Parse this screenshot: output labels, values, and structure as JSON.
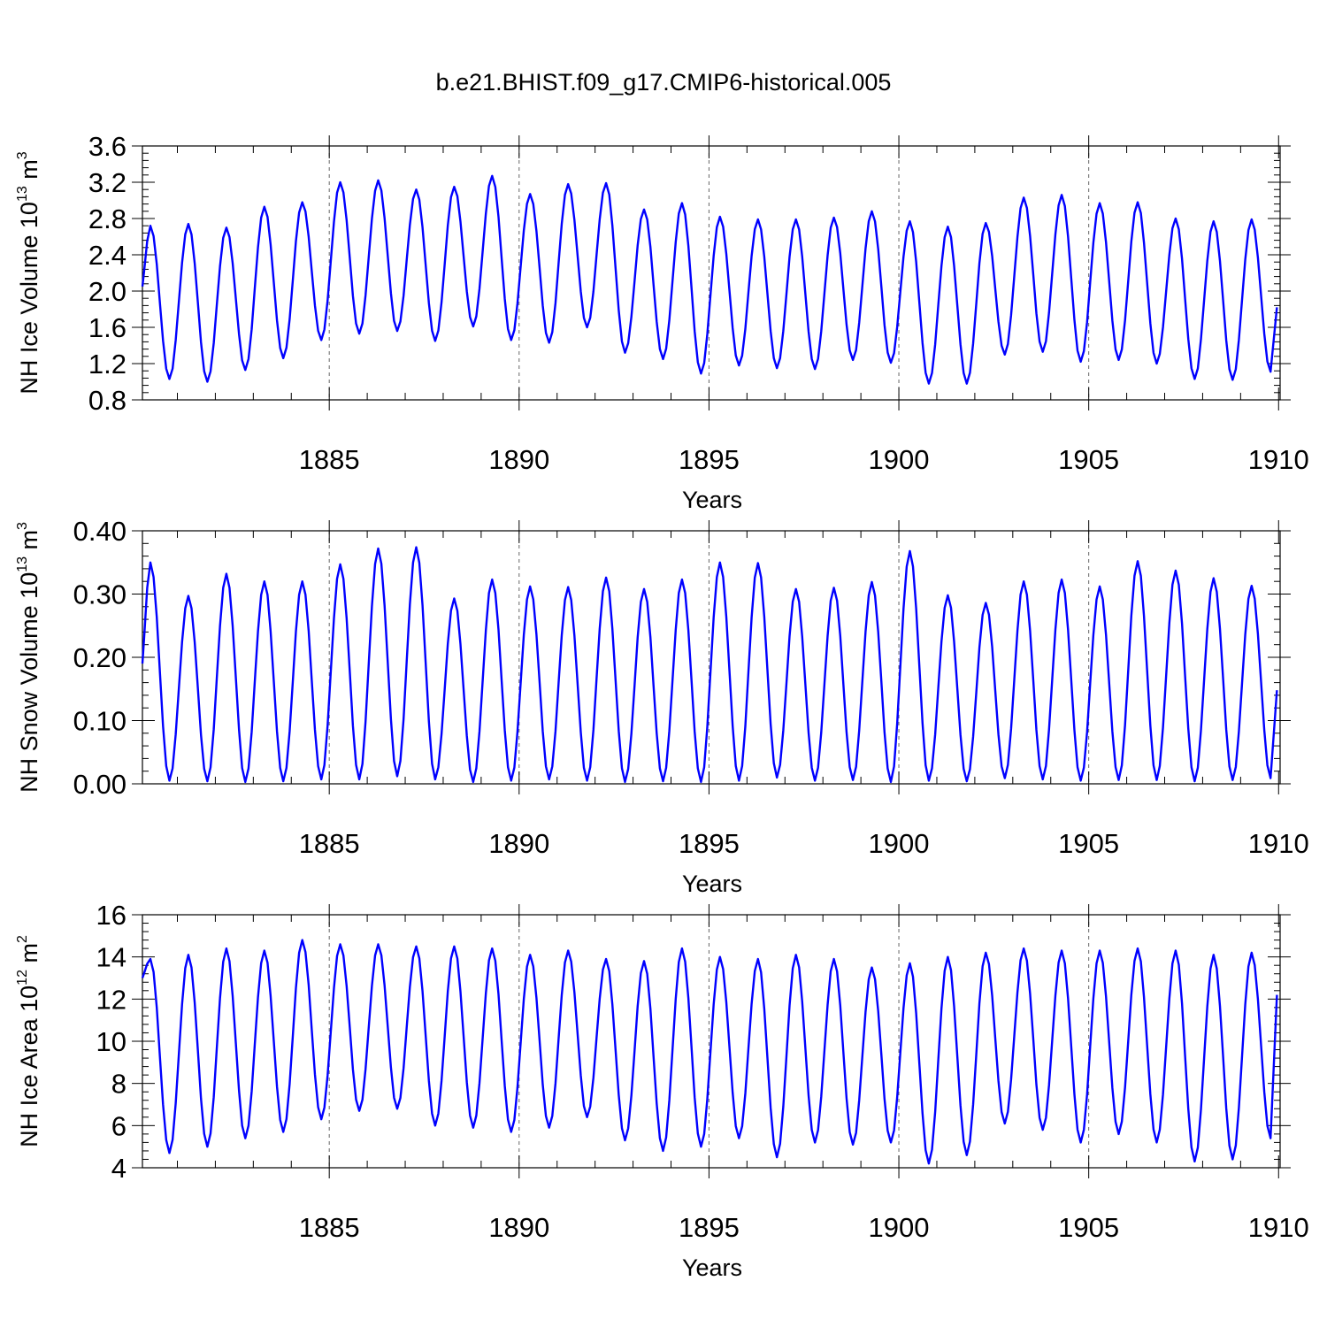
{
  "title": "b.e21.BHIST.f09_g17.CMIP6-historical.005",
  "colors": {
    "line": "#0000ff",
    "axis": "#000000",
    "grid": "#666666"
  },
  "chart_data": [
    {
      "type": "line",
      "id": "ice-volume",
      "ylabel": {
        "text": "NH Ice Volume 10",
        "exp": "13",
        "unit": " m",
        "unit_exp": "3"
      },
      "xlabel": "Years",
      "xlim": [
        1880.08,
        1910.04
      ],
      "ylim": [
        0.8,
        3.6
      ],
      "yticks": [
        0.8,
        1.2,
        1.6,
        2.0,
        2.4,
        2.8,
        3.2,
        3.6
      ],
      "ytick_labels": [
        "0.8",
        "1.2",
        "1.6",
        "2.0",
        "2.4",
        "2.8",
        "3.2",
        "3.6"
      ],
      "xticks": [
        1885,
        1890,
        1895,
        1900,
        1905,
        1910
      ],
      "xtick_labels": [
        "1885",
        "1890",
        "1895",
        "1900",
        "1905",
        "1910"
      ],
      "x_start": 1880.04,
      "month_step": 0.08333,
      "start_value": 2.05,
      "annual_max": [
        2.72,
        2.74,
        2.7,
        2.93,
        2.98,
        3.2,
        3.22,
        3.12,
        3.15,
        3.27,
        3.07,
        3.18,
        3.19,
        2.9,
        2.97,
        2.82,
        2.79,
        2.79,
        2.81,
        2.88,
        2.77,
        2.71,
        2.75,
        3.03,
        3.06,
        2.97,
        2.98,
        2.8,
        2.77,
        2.79
      ],
      "annual_min": [
        1.03,
        1.0,
        1.13,
        1.26,
        1.46,
        1.53,
        1.56,
        1.45,
        1.61,
        1.46,
        1.43,
        1.6,
        1.32,
        1.25,
        1.09,
        1.18,
        1.15,
        1.14,
        1.24,
        1.21,
        0.98,
        0.98,
        1.3,
        1.33,
        1.22,
        1.24,
        1.2,
        1.03,
        1.02,
        1.11
      ],
      "end_value": 1.82
    },
    {
      "type": "line",
      "id": "snow-volume",
      "ylabel": {
        "text": "NH Snow Volume 10",
        "exp": "13",
        "unit": " m",
        "unit_exp": "3"
      },
      "xlabel": "Years",
      "xlim": [
        1880.08,
        1910.04
      ],
      "ylim": [
        0.0,
        0.4
      ],
      "yticks": [
        0.0,
        0.1,
        0.2,
        0.3,
        0.4
      ],
      "ytick_labels": [
        "0.00",
        "0.10",
        "0.20",
        "0.30",
        "0.40"
      ],
      "xticks": [
        1885,
        1890,
        1895,
        1900,
        1905,
        1910
      ],
      "xtick_labels": [
        "1885",
        "1890",
        "1895",
        "1900",
        "1905",
        "1910"
      ],
      "x_start": 1880.04,
      "month_step": 0.08333,
      "start_value": 0.19,
      "annual_max": [
        0.35,
        0.297,
        0.332,
        0.32,
        0.32,
        0.347,
        0.372,
        0.374,
        0.293,
        0.323,
        0.312,
        0.311,
        0.326,
        0.308,
        0.323,
        0.35,
        0.349,
        0.308,
        0.31,
        0.319,
        0.368,
        0.298,
        0.286,
        0.32,
        0.323,
        0.312,
        0.352,
        0.337,
        0.325,
        0.313
      ],
      "annual_min": [
        0.005,
        0.004,
        0.003,
        0.004,
        0.007,
        0.007,
        0.012,
        0.007,
        0.003,
        0.005,
        0.007,
        0.005,
        0.003,
        0.004,
        0.003,
        0.005,
        0.01,
        0.005,
        0.006,
        0.003,
        0.005,
        0.004,
        0.009,
        0.007,
        0.005,
        0.006,
        0.006,
        0.004,
        0.006,
        0.009
      ],
      "end_value": 0.148
    },
    {
      "type": "line",
      "id": "ice-area",
      "ylabel": {
        "text": "NH Ice Area 10",
        "exp": "12",
        "unit": " m",
        "unit_exp": "2"
      },
      "xlabel": "Years",
      "xlim": [
        1880.08,
        1910.04
      ],
      "ylim": [
        4,
        16
      ],
      "yticks": [
        4,
        6,
        8,
        10,
        12,
        14,
        16
      ],
      "ytick_labels": [
        "4",
        "6",
        "8",
        "10",
        "12",
        "14",
        "16"
      ],
      "xticks": [
        1885,
        1890,
        1895,
        1900,
        1905,
        1910
      ],
      "xtick_labels": [
        "1885",
        "1890",
        "1895",
        "1900",
        "1905",
        "1910"
      ],
      "x_start": 1880.04,
      "month_step": 0.08333,
      "start_value": 13.0,
      "annual_max": [
        13.9,
        14.1,
        14.4,
        14.3,
        14.8,
        14.6,
        14.6,
        14.5,
        14.5,
        14.4,
        14.1,
        14.3,
        13.9,
        13.8,
        14.4,
        14.0,
        13.9,
        14.1,
        13.9,
        13.5,
        13.7,
        14.0,
        14.2,
        14.4,
        14.3,
        14.3,
        14.4,
        14.3,
        14.1,
        14.2
      ],
      "annual_min": [
        4.7,
        5.0,
        5.4,
        5.7,
        6.3,
        6.7,
        6.8,
        6.0,
        5.9,
        5.7,
        5.9,
        6.4,
        5.3,
        4.8,
        5.0,
        5.4,
        4.5,
        5.2,
        5.1,
        5.2,
        4.2,
        4.6,
        6.1,
        5.8,
        5.2,
        5.6,
        5.2,
        4.3,
        4.4,
        5.4
      ],
      "end_value": 12.2
    }
  ]
}
